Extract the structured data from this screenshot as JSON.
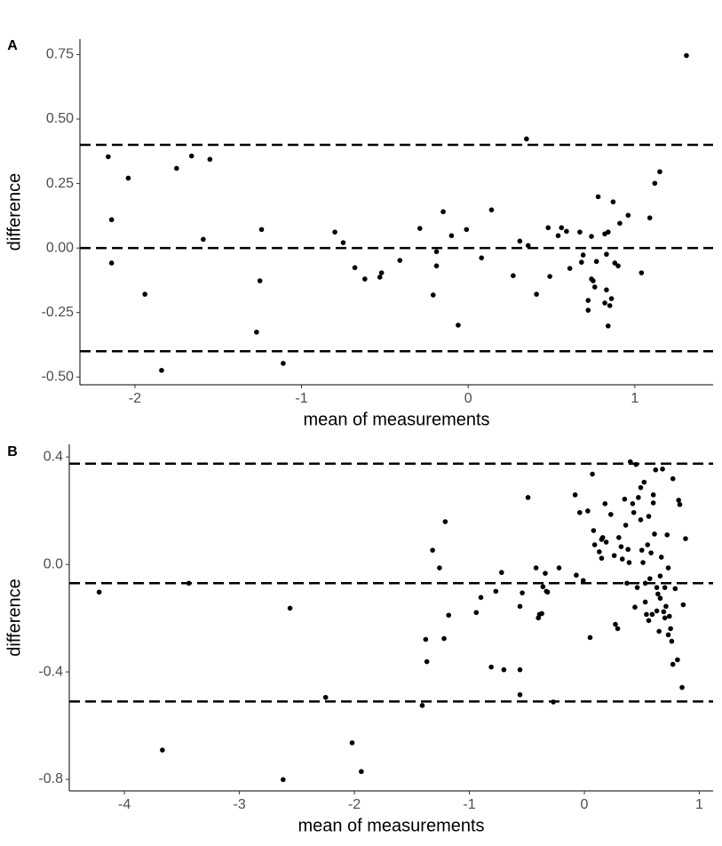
{
  "chart_data": [
    {
      "type": "scatter",
      "panel_label": "A",
      "x_label": "mean of measurements",
      "y_label": "difference",
      "color": "#000000",
      "xlim": [
        -2.33,
        1.47
      ],
      "xticks": [
        -2,
        -1,
        0,
        1
      ],
      "ylim": [
        -0.53,
        0.81
      ],
      "yticks": [
        0.75,
        {
          "value": 0.5,
          "label": "0.50"
        },
        0.25,
        {
          "value": 0,
          "label": "0.00"
        },
        -0.25,
        {
          "value": -0.5,
          "label": "-0.50"
        }
      ],
      "hlines": [
        0.4,
        0,
        -0.4
      ],
      "x": [
        -2.16,
        -2.14,
        -2.14,
        -2.04,
        -1.94,
        -1.84,
        -1.75,
        -1.66,
        -1.59,
        -1.55,
        -1.27,
        -1.25,
        -1.24,
        -1.11,
        -0.8,
        -0.75,
        -0.68,
        -0.62,
        -0.53,
        -0.52,
        -0.41,
        -0.29,
        -0.21,
        -0.19,
        -0.19,
        -0.15,
        -0.1,
        -0.06,
        -0.01,
        0.08,
        0.14,
        0.27,
        0.31,
        0.35,
        0.36,
        0.41,
        0.48,
        0.49,
        0.54,
        0.56,
        0.59,
        0.61,
        0.67,
        0.68,
        0.69,
        0.72,
        0.72,
        0.74,
        0.74,
        0.75,
        0.76,
        0.77,
        0.78,
        0.82,
        0.82,
        0.83,
        0.83,
        0.84,
        0.84,
        0.85,
        0.86,
        0.87,
        0.88,
        0.9,
        0.91,
        0.96,
        1.04,
        1.09,
        1.12,
        1.15,
        1.31
      ],
      "values": [
        0.354,
        0.11,
        -0.058,
        0.271,
        -0.179,
        -0.474,
        0.309,
        0.357,
        0.034,
        0.344,
        -0.326,
        -0.127,
        0.072,
        -0.447,
        0.062,
        0.021,
        -0.076,
        -0.12,
        -0.113,
        -0.096,
        -0.048,
        0.076,
        -0.182,
        -0.069,
        -0.014,
        0.141,
        0.048,
        -0.299,
        0.072,
        -0.038,
        0.148,
        -0.107,
        0.027,
        0.423,
        0.01,
        -0.179,
        0.079,
        -0.11,
        0.048,
        0.079,
        0.065,
        -0.079,
        0.062,
        -0.055,
        -0.027,
        -0.203,
        -0.241,
        -0.12,
        0.045,
        -0.127,
        -0.151,
        -0.052,
        0.199,
        0.055,
        -0.213,
        -0.024,
        -0.162,
        0.062,
        -0.302,
        -0.223,
        -0.196,
        0.179,
        -0.058,
        -0.069,
        0.096,
        0.127,
        -0.096,
        0.117,
        0.251,
        0.296,
        0.746
      ]
    },
    {
      "type": "scatter",
      "panel_label": "B",
      "x_label": "mean of measurements",
      "y_label": "difference",
      "color": "#000000",
      "xlim": [
        -4.48,
        1.12
      ],
      "xticks": [
        -4,
        -3,
        -2,
        -1,
        0,
        1
      ],
      "ylim": [
        -0.843,
        0.447
      ],
      "yticks": [
        0.4,
        {
          "value": 0,
          "label": "0.0"
        },
        -0.4,
        -0.8
      ],
      "hlines": [
        0.375,
        -0.07,
        -0.51
      ],
      "x": [
        -4.22,
        -3.67,
        -3.44,
        -2.62,
        -2.56,
        -2.25,
        -2.02,
        -1.94,
        -1.41,
        -1.38,
        -1.37,
        -1.32,
        -1.26,
        -1.22,
        -1.21,
        -1.18,
        -0.94,
        -0.9,
        -0.81,
        -0.77,
        -0.72,
        -0.7,
        -0.56,
        -0.56,
        -0.54,
        -0.49,
        -0.56,
        -0.42,
        -0.4,
        -0.39,
        -0.37,
        -0.36,
        -0.34,
        -0.33,
        -0.32,
        -0.27,
        -0.22,
        -0.08,
        -0.07,
        -0.04,
        -0.01,
        0.03,
        0.05,
        0.07,
        0.08,
        0.09,
        0.13,
        0.15,
        0.15,
        0.16,
        0.18,
        0.19,
        0.23,
        0.26,
        0.27,
        0.29,
        0.3,
        0.32,
        0.33,
        0.35,
        0.36,
        0.37,
        0.38,
        0.39,
        0.4,
        0.42,
        0.43,
        0.44,
        0.45,
        0.46,
        0.47,
        0.49,
        0.49,
        0.5,
        0.51,
        0.52,
        0.53,
        0.53,
        0.54,
        0.55,
        0.56,
        0.56,
        0.57,
        0.58,
        0.59,
        0.6,
        0.6,
        0.61,
        0.62,
        0.63,
        0.63,
        0.64,
        0.65,
        0.66,
        0.66,
        0.67,
        0.68,
        0.69,
        0.7,
        0.7,
        0.71,
        0.72,
        0.73,
        0.73,
        0.74,
        0.75,
        0.76,
        0.77,
        0.77,
        0.79,
        0.81,
        0.82,
        0.83,
        0.85,
        0.86,
        0.88
      ],
      "values": [
        -0.103,
        -0.691,
        -0.07,
        -0.801,
        -0.163,
        -0.495,
        -0.664,
        -0.771,
        -0.525,
        -0.279,
        -0.362,
        0.053,
        -0.013,
        -0.276,
        0.159,
        -0.189,
        -0.179,
        -0.123,
        -0.382,
        -0.1,
        -0.03,
        -0.392,
        -0.156,
        -0.392,
        -0.106,
        0.249,
        -0.485,
        -0.013,
        -0.199,
        -0.186,
        -0.183,
        -0.083,
        -0.033,
        -0.1,
        -0.103,
        -0.512,
        -0.013,
        0.259,
        -0.04,
        0.193,
        -0.06,
        0.199,
        -0.272,
        0.336,
        0.126,
        0.073,
        0.047,
        0.093,
        0.023,
        0.1,
        0.226,
        0.083,
        0.186,
        0.033,
        -0.223,
        -0.239,
        0.1,
        0.066,
        0.02,
        0.243,
        0.146,
        -0.07,
        0.056,
        0.007,
        0.382,
        0.226,
        0.193,
        -0.159,
        0.372,
        -0.086,
        0.249,
        0.166,
        0.286,
        0.053,
        0.007,
        0.306,
        -0.07,
        -0.14,
        -0.186,
        0.073,
        0.179,
        -0.209,
        -0.053,
        0.043,
        -0.186,
        0.229,
        0.259,
        0.113,
        0.352,
        -0.086,
        -0.173,
        -0.11,
        -0.249,
        -0.126,
        -0.043,
        0.027,
        0.355,
        -0.176,
        -0.199,
        -0.086,
        -0.156,
        0.11,
        -0.262,
        -0.013,
        -0.193,
        -0.239,
        -0.286,
        -0.372,
        0.319,
        -0.09,
        -0.355,
        0.239,
        0.223,
        -0.458,
        -0.15,
        0.096
      ]
    }
  ]
}
